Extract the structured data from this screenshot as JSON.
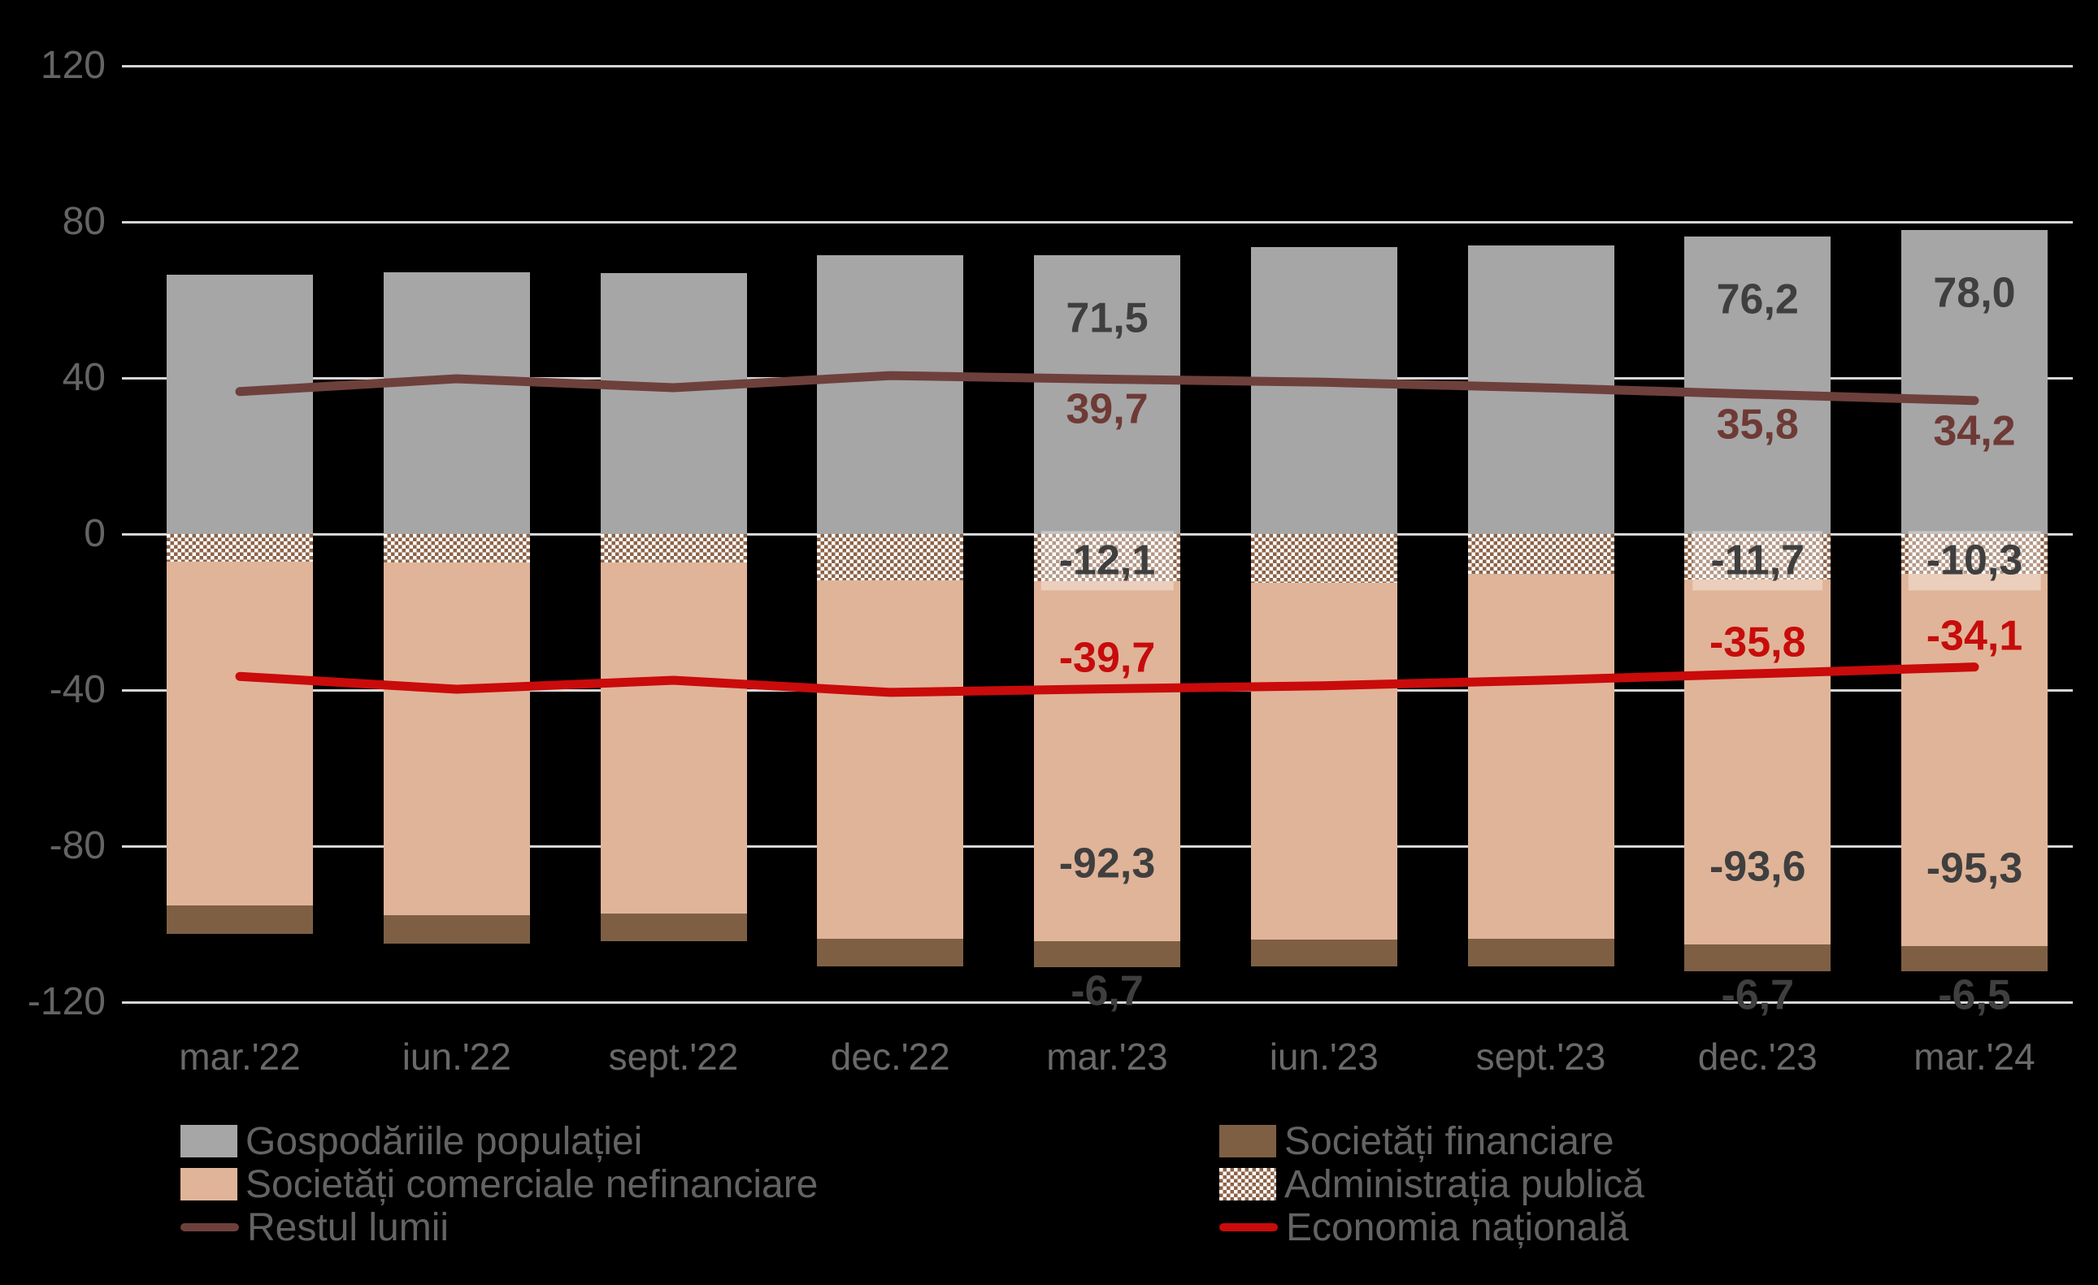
{
  "chart_data": {
    "type": "bar",
    "subtype": "stacked-bars-with-lines",
    "title": "",
    "categories": [
      "mar.'22",
      "iun.'22",
      "sept.'22",
      "dec.'22",
      "mar.'23",
      "iun.'23",
      "sept.'23",
      "dec.'23",
      "mar.'24"
    ],
    "y_axis": {
      "ticks": [
        "120",
        "80",
        "40",
        "0",
        "-40",
        "-80",
        "-120"
      ],
      "tick_values": [
        120,
        80,
        40,
        0,
        -40,
        -80,
        -120
      ],
      "min": -120,
      "max": 120
    },
    "grid": true,
    "legend_position": "bottom",
    "background_color": "#000000",
    "gridline_color": "#d6d6d6",
    "series": [
      {
        "name": "Gospodăriile populației",
        "role": "bar",
        "color": "#a6a6a6",
        "values": [
          66.4,
          67.0,
          66.8,
          71.5,
          71.5,
          73.5,
          74.0,
          76.2,
          78.0
        ]
      },
      {
        "name": "Administrația publică",
        "role": "bar",
        "pattern": "checker",
        "color": "#8c6347",
        "values": [
          -7.0,
          -7.2,
          -7.3,
          -11.8,
          -12.1,
          -12.5,
          -10.4,
          -11.7,
          -10.3
        ]
      },
      {
        "name": "Societăți comerciale nefinanciare",
        "role": "bar",
        "color": "#e0b498",
        "values": [
          -88.3,
          -90.6,
          -89.9,
          -91.9,
          -92.3,
          -91.5,
          -93.4,
          -93.6,
          -95.3
        ]
      },
      {
        "name": "Societăți financiare",
        "role": "bar",
        "color": "#7e5f44",
        "values": [
          -7.2,
          -7.1,
          -7.1,
          -7.1,
          -6.7,
          -6.9,
          -7.1,
          -6.7,
          -6.5
        ]
      },
      {
        "name": "Restul lumii",
        "role": "line",
        "color": "#6e403c",
        "values": [
          36.5,
          39.8,
          37.5,
          40.6,
          39.7,
          38.9,
          37.5,
          35.8,
          34.2
        ]
      },
      {
        "name": "Economia națională",
        "role": "line",
        "color": "#c90b0b",
        "values": [
          -36.5,
          -39.8,
          -37.5,
          -40.6,
          -39.7,
          -38.9,
          -37.5,
          -35.8,
          -34.1
        ]
      }
    ],
    "data_labels": [
      {
        "category_index": 4,
        "households": "71,5",
        "rest_of_world": "39,7",
        "public_admin": "-12,1",
        "national_economy": "-39,7",
        "nonfinancial": "-92,3",
        "financial": "-6,7"
      },
      {
        "category_index": 7,
        "households": "76,2",
        "rest_of_world": "35,8",
        "public_admin": "-11,7",
        "national_economy": "-35,8",
        "nonfinancial": "-93,6",
        "financial": "-6,7"
      },
      {
        "category_index": 8,
        "households": "78,0",
        "rest_of_world": "34,2",
        "public_admin": "-10,3",
        "national_economy": "-34,1",
        "nonfinancial": "-95,3",
        "financial": "-6,5"
      }
    ],
    "legend": {
      "column1_series_indexes": [
        0,
        2,
        4
      ],
      "column2_series_indexes": [
        3,
        1,
        5
      ]
    }
  }
}
